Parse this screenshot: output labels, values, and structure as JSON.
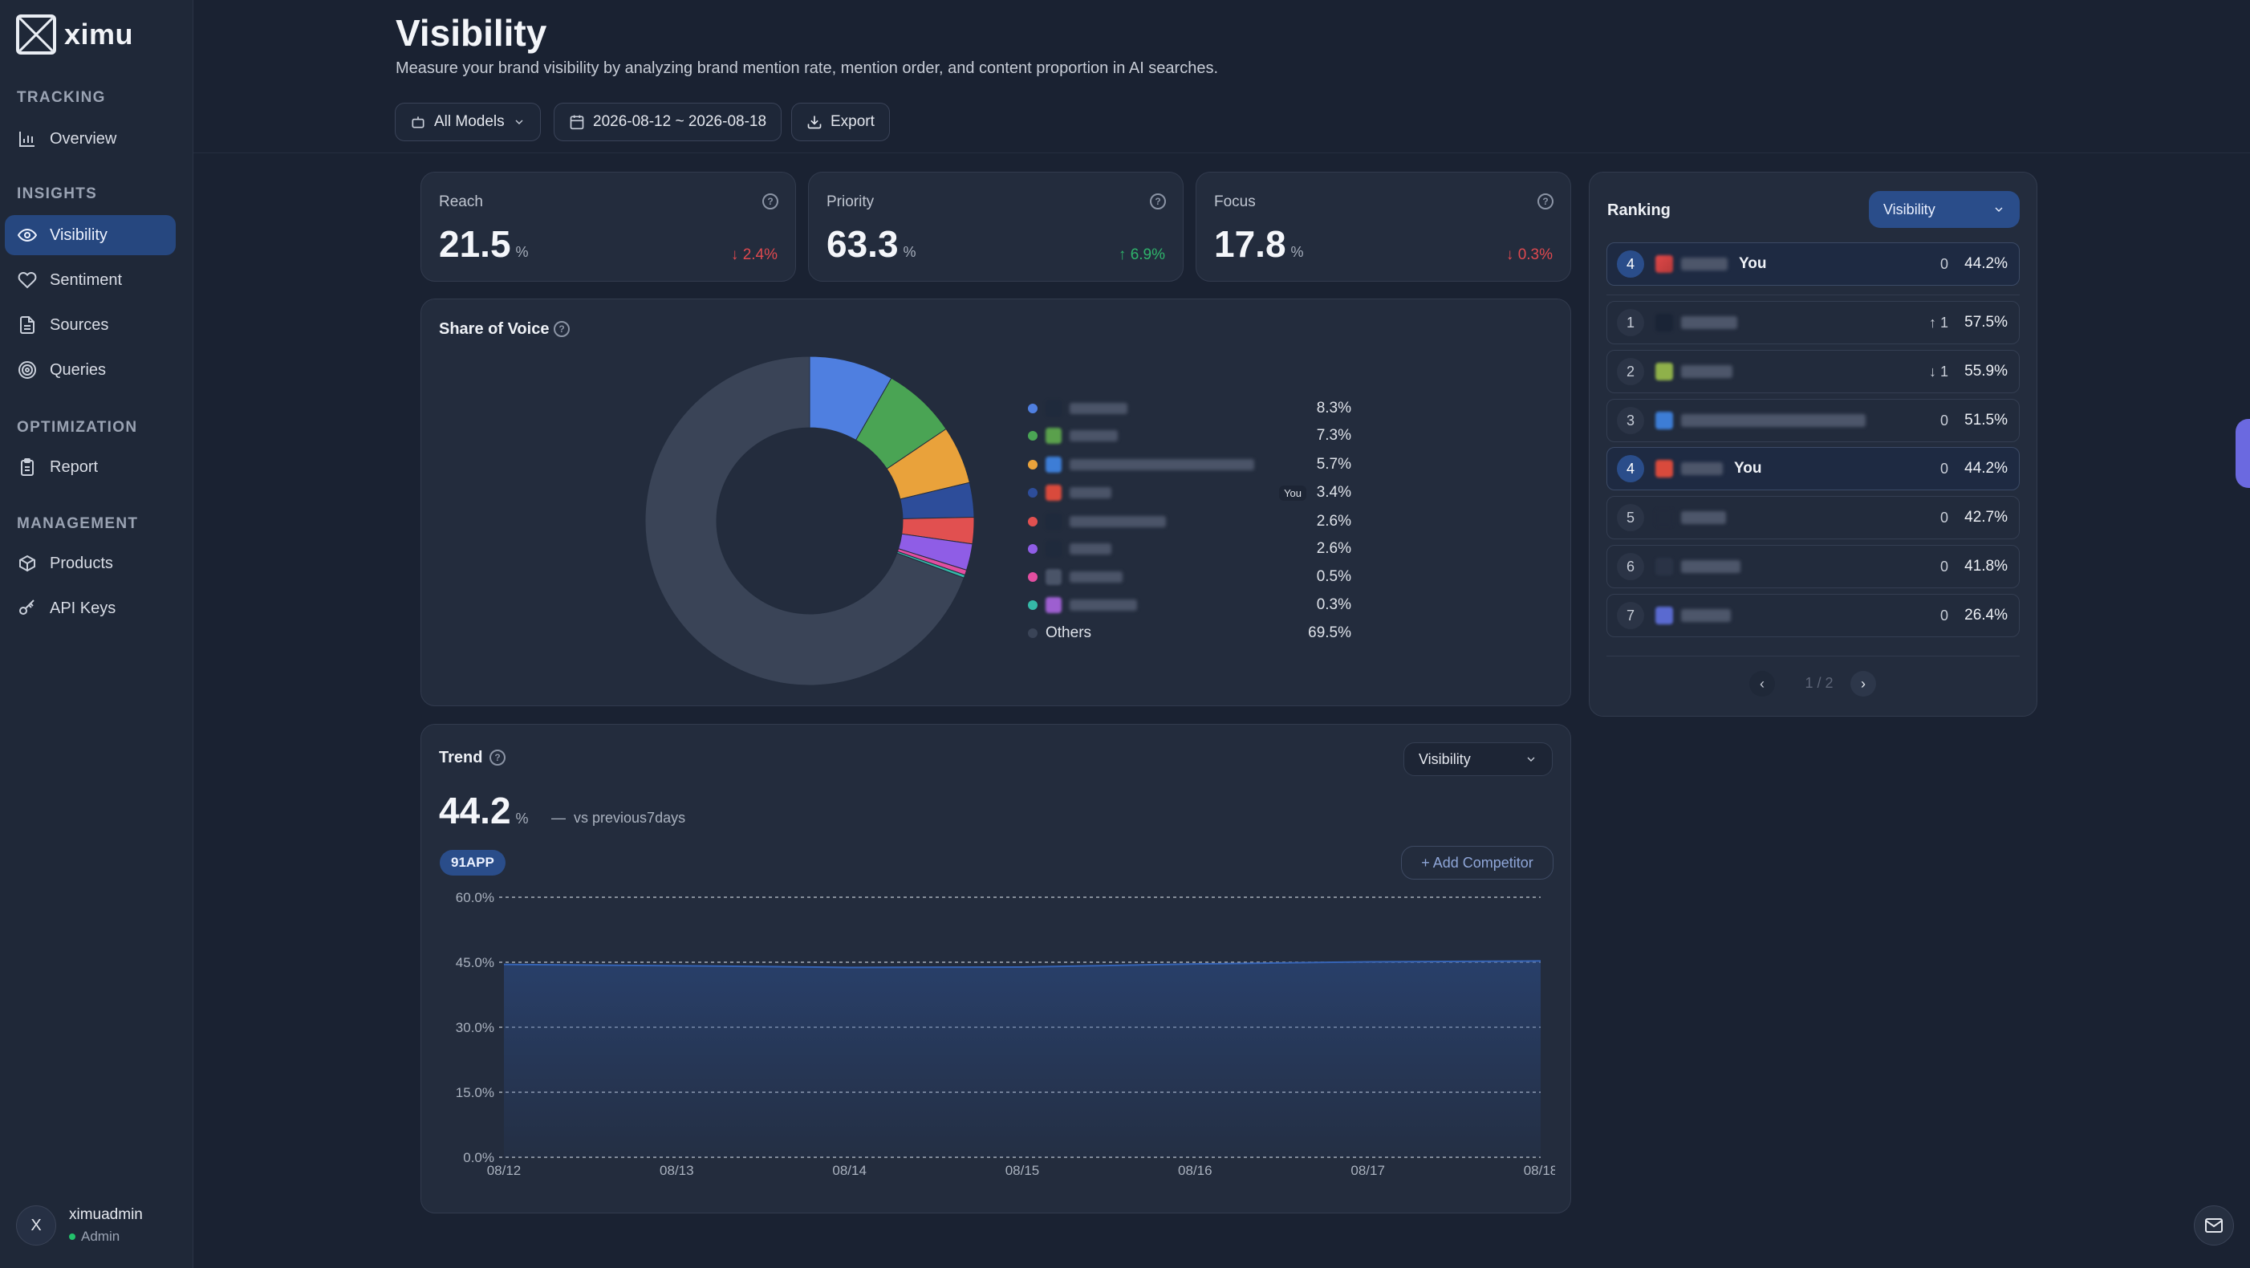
{
  "app": {
    "name": "ximu"
  },
  "sidebar": {
    "sections": [
      {
        "title": "TRACKING",
        "items": [
          {
            "label": "Overview",
            "icon": "bar-chart-icon"
          }
        ]
      },
      {
        "title": "INSIGHTS",
        "items": [
          {
            "label": "Visibility",
            "icon": "eye-icon",
            "active": true
          },
          {
            "label": "Sentiment",
            "icon": "heart-icon"
          },
          {
            "label": "Sources",
            "icon": "document-icon"
          },
          {
            "label": "Queries",
            "icon": "target-icon"
          }
        ]
      },
      {
        "title": "OPTIMIZATION",
        "items": [
          {
            "label": "Report",
            "icon": "clipboard-icon"
          }
        ]
      },
      {
        "title": "MANAGEMENT",
        "items": [
          {
            "label": "Products",
            "icon": "box-icon"
          },
          {
            "label": "API Keys",
            "icon": "key-icon"
          }
        ]
      }
    ],
    "user": {
      "initial": "X",
      "name": "ximuadmin",
      "role": "Admin"
    }
  },
  "header": {
    "title": "Visibility",
    "description": "Measure your brand visibility by analyzing brand mention rate, mention order, and content proportion in AI searches.",
    "model_select": "All Models",
    "date_range": "2026-08-12 ~ 2026-08-18",
    "export_label": "Export"
  },
  "stats": [
    {
      "label": "Reach",
      "value": "21.5",
      "unit": "%",
      "change": "2.4%",
      "direction": "down"
    },
    {
      "label": "Priority",
      "value": "63.3",
      "unit": "%",
      "change": "6.9%",
      "direction": "up"
    },
    {
      "label": "Focus",
      "value": "17.8",
      "unit": "%",
      "change": "0.3%",
      "direction": "down"
    }
  ],
  "share_of_voice": {
    "title": "Share of Voice",
    "you_tag": "You",
    "items": [
      {
        "pct": "8.3%",
        "value": 8.3,
        "color": "#4f7fe0"
      },
      {
        "pct": "7.3%",
        "value": 7.3,
        "color": "#4aa454"
      },
      {
        "pct": "5.7%",
        "value": 5.7,
        "color": "#e9a23b"
      },
      {
        "pct": "3.4%",
        "value": 3.4,
        "color": "#2d4d9a",
        "you": true
      },
      {
        "pct": "2.6%",
        "value": 2.6,
        "color": "#e15050"
      },
      {
        "pct": "2.6%",
        "value": 2.6,
        "color": "#8f5de6"
      },
      {
        "pct": "0.5%",
        "value": 0.5,
        "color": "#e24ea0"
      },
      {
        "pct": "0.3%",
        "value": 0.3,
        "color": "#35b9a8"
      },
      {
        "label": "Others",
        "pct": "69.5%",
        "value": 69.5,
        "color": "#3a4457"
      }
    ]
  },
  "ranking": {
    "title": "Ranking",
    "metric": "Visibility",
    "you_label": "You",
    "pinned": {
      "rank": "4",
      "delta": "0",
      "pct": "44.2%"
    },
    "rows": [
      {
        "rank": "1",
        "delta": "1",
        "dir": "up",
        "pct": "57.5%"
      },
      {
        "rank": "2",
        "delta": "1",
        "dir": "down",
        "pct": "55.9%"
      },
      {
        "rank": "3",
        "delta": "0",
        "pct": "51.5%"
      },
      {
        "rank": "4",
        "delta": "0",
        "pct": "44.2%",
        "you": true
      },
      {
        "rank": "5",
        "delta": "0",
        "pct": "42.7%"
      },
      {
        "rank": "6",
        "delta": "0",
        "pct": "41.8%"
      },
      {
        "rank": "7",
        "delta": "0",
        "pct": "26.4%"
      }
    ],
    "pager": "1 / 2"
  },
  "trend": {
    "title": "Trend",
    "metric": "Visibility",
    "value": "44.2",
    "unit": "%",
    "compare_dash": "—",
    "compare": "vs previous7days",
    "brand_badge": "91APP",
    "add_competitor": "+ Add Competitor"
  },
  "chart_data": {
    "type": "area",
    "x": [
      "08/12",
      "08/13",
      "08/14",
      "08/15",
      "08/16",
      "08/17",
      "08/18"
    ],
    "series": [
      {
        "name": "91APP",
        "values": [
          44.5,
          44.2,
          43.8,
          43.9,
          44.6,
          45.1,
          45.3
        ]
      }
    ],
    "yticks": [
      "60.0%",
      "45.0%",
      "30.0%",
      "15.0%",
      "0.0%"
    ],
    "ylim": [
      0,
      60
    ],
    "grid": true,
    "color": "#2d4f8e"
  }
}
